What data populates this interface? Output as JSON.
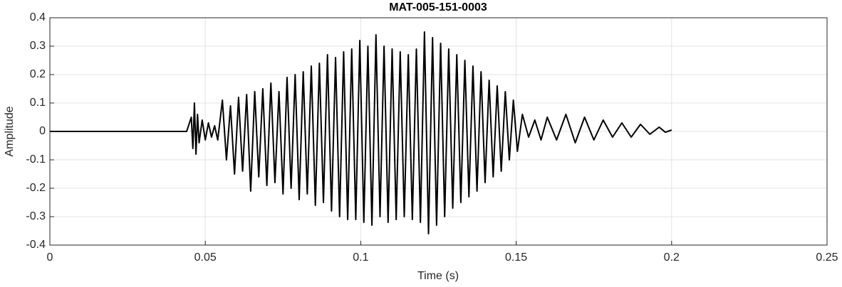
{
  "chart_data": {
    "type": "line",
    "title": "MAT-005-151-0003",
    "xlabel": "Time (s)",
    "ylabel": "Amplitude",
    "color": "#000000",
    "grid": true,
    "xlim": [
      0,
      0.25
    ],
    "xticks": [
      0,
      0.05,
      0.1,
      0.15,
      0.2,
      0.25
    ],
    "ylim": [
      -0.4,
      0.4
    ],
    "yticks": [
      -0.4,
      -0.3,
      -0.2,
      -0.1,
      0,
      0.1,
      0.2,
      0.3,
      0.4
    ],
    "x": [
      0,
      0.044,
      0.0455,
      0.046,
      0.0465,
      0.047,
      0.0475,
      0.048,
      0.049,
      0.05,
      0.051,
      0.052,
      0.053,
      0.054,
      0.0555,
      0.0568,
      0.0581,
      0.0594,
      0.0607,
      0.062,
      0.0633,
      0.0646,
      0.0659,
      0.0672,
      0.0685,
      0.0698,
      0.0711,
      0.0724,
      0.0737,
      0.075,
      0.0763,
      0.0776,
      0.0789,
      0.0802,
      0.0815,
      0.0828,
      0.0841,
      0.0854,
      0.0867,
      0.088,
      0.0893,
      0.0906,
      0.0919,
      0.0932,
      0.0945,
      0.0958,
      0.0971,
      0.0984,
      0.0997,
      0.101,
      0.1023,
      0.1036,
      0.1049,
      0.1062,
      0.1075,
      0.1088,
      0.1101,
      0.1114,
      0.1127,
      0.114,
      0.1153,
      0.1166,
      0.1179,
      0.1192,
      0.1205,
      0.1218,
      0.1231,
      0.1244,
      0.1257,
      0.127,
      0.1283,
      0.1296,
      0.1309,
      0.1322,
      0.1335,
      0.1348,
      0.1361,
      0.1374,
      0.1387,
      0.14,
      0.1413,
      0.1426,
      0.1439,
      0.1452,
      0.1465,
      0.1478,
      0.1491,
      0.1504,
      0.152,
      0.154,
      0.156,
      0.158,
      0.16,
      0.163,
      0.166,
      0.169,
      0.172,
      0.175,
      0.178,
      0.181,
      0.184,
      0.187,
      0.19,
      0.193,
      0.196,
      0.198,
      0.2
    ],
    "y": [
      0,
      0,
      0.05,
      -0.06,
      0.1,
      -0.08,
      0.06,
      -0.04,
      0.04,
      -0.03,
      0.03,
      -0.02,
      0.02,
      -0.03,
      0.11,
      -0.1,
      0.09,
      -0.15,
      0.12,
      -0.14,
      0.13,
      -0.21,
      0.14,
      -0.16,
      0.15,
      -0.19,
      0.17,
      -0.18,
      0.14,
      -0.22,
      0.19,
      -0.2,
      0.2,
      -0.24,
      0.21,
      -0.22,
      0.23,
      -0.26,
      0.24,
      -0.25,
      0.27,
      -0.28,
      0.26,
      -0.3,
      0.28,
      -0.31,
      0.29,
      -0.31,
      0.32,
      -0.32,
      0.3,
      -0.33,
      0.34,
      -0.3,
      0.3,
      -0.32,
      0.29,
      -0.31,
      0.28,
      -0.3,
      0.27,
      -0.31,
      0.29,
      -0.32,
      0.35,
      -0.36,
      0.33,
      -0.33,
      0.31,
      -0.3,
      0.29,
      -0.27,
      0.27,
      -0.25,
      0.25,
      -0.23,
      0.23,
      -0.21,
      0.21,
      -0.18,
      0.18,
      -0.16,
      0.16,
      -0.14,
      0.14,
      -0.1,
      0.11,
      -0.07,
      0.06,
      -0.02,
      0.04,
      -0.03,
      0.05,
      -0.03,
      0.06,
      -0.04,
      0.05,
      -0.03,
      0.04,
      -0.02,
      0.03,
      -0.02,
      0.025,
      -0.01,
      0.015,
      -0.003,
      0.005
    ]
  }
}
